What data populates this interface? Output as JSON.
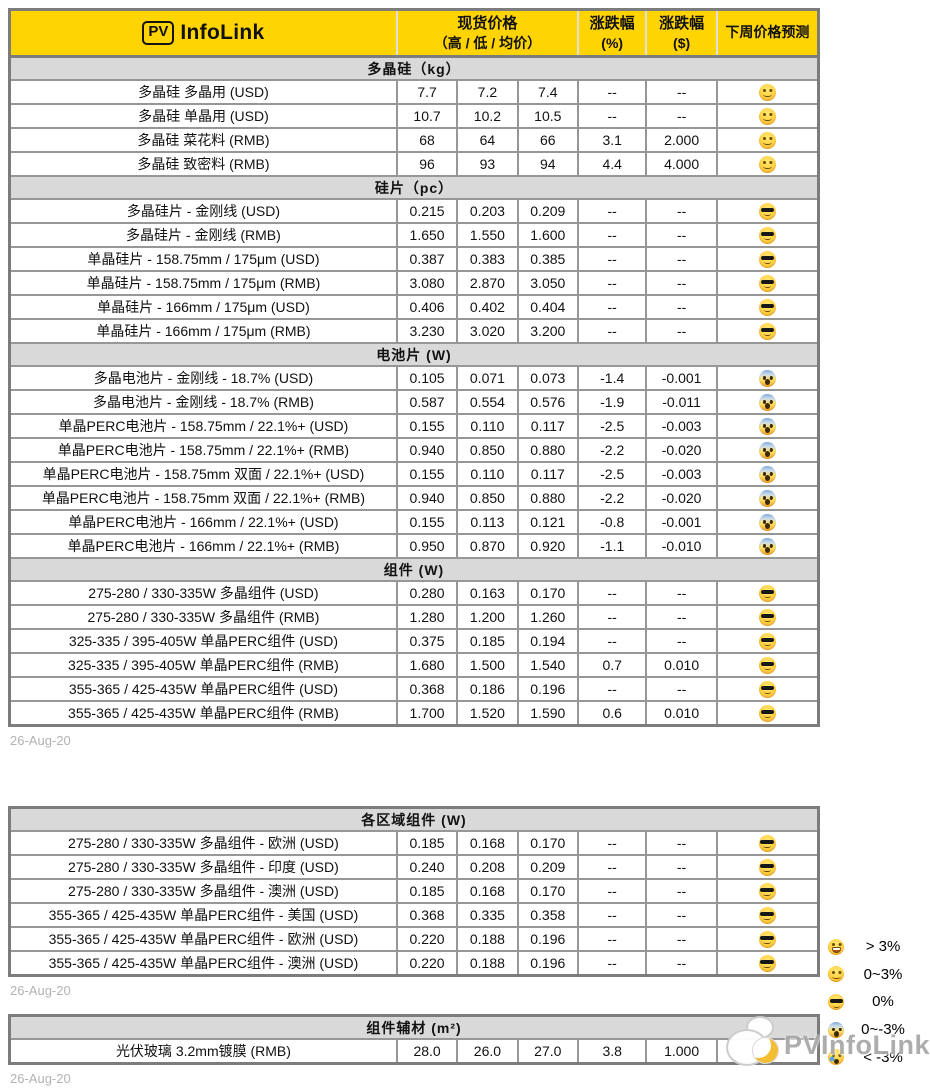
{
  "header": {
    "logo_pv": "PV",
    "logo_brand": "InfoLink",
    "spot_price_line1": "现货价格",
    "spot_price_line2": "（高 / 低 / 均价）",
    "change_pct_line1": "涨跌幅",
    "change_pct_line2": "(%)",
    "change_usd_line1": "涨跌幅",
    "change_usd_line2": "($)",
    "forecast": "下周价格预测"
  },
  "colors": {
    "accent": "#FFD400",
    "up": "#17A45F",
    "down": "#DC3A36",
    "section_bg": "#D9D9D9",
    "date_text": "#B2B2B2"
  },
  "blocks": [
    {
      "date": "26-Aug-20",
      "sections": [
        {
          "title": "多晶硅（kg）",
          "rows": [
            {
              "name": "多晶硅 多晶用 (USD)",
              "high": "7.7",
              "low": "7.2",
              "avg": "7.4",
              "pct": "--",
              "chg": "--",
              "emoji": "smile"
            },
            {
              "name": "多晶硅 单晶用 (USD)",
              "high": "10.7",
              "low": "10.2",
              "avg": "10.5",
              "pct": "--",
              "chg": "--",
              "emoji": "smile"
            },
            {
              "name": "多晶硅 菜花料 (RMB)",
              "high": "68",
              "low": "64",
              "avg": "66",
              "pct": "3.1",
              "chg": "2.000",
              "emoji": "smile"
            },
            {
              "name": "多晶硅 致密料 (RMB)",
              "high": "96",
              "low": "93",
              "avg": "94",
              "pct": "4.4",
              "chg": "4.000",
              "emoji": "smile"
            }
          ]
        },
        {
          "title": "硅片（pc）",
          "rows": [
            {
              "name": "多晶硅片 - 金刚线 (USD)",
              "high": "0.215",
              "low": "0.203",
              "avg": "0.209",
              "pct": "--",
              "chg": "--",
              "emoji": "cool"
            },
            {
              "name": "多晶硅片 - 金刚线 (RMB)",
              "high": "1.650",
              "low": "1.550",
              "avg": "1.600",
              "pct": "--",
              "chg": "--",
              "emoji": "cool"
            },
            {
              "name": "单晶硅片 - 158.75mm / 175μm (USD)",
              "high": "0.387",
              "low": "0.383",
              "avg": "0.385",
              "pct": "--",
              "chg": "--",
              "emoji": "cool"
            },
            {
              "name": "单晶硅片 - 158.75mm / 175μm (RMB)",
              "high": "3.080",
              "low": "2.870",
              "avg": "3.050",
              "pct": "--",
              "chg": "--",
              "emoji": "cool"
            },
            {
              "name": "单晶硅片 - 166mm / 175μm (USD)",
              "high": "0.406",
              "low": "0.402",
              "avg": "0.404",
              "pct": "--",
              "chg": "--",
              "emoji": "cool"
            },
            {
              "name": "单晶硅片 - 166mm / 175μm (RMB)",
              "high": "3.230",
              "low": "3.020",
              "avg": "3.200",
              "pct": "--",
              "chg": "--",
              "emoji": "cool"
            }
          ]
        },
        {
          "title": "电池片 (W)",
          "rows": [
            {
              "name": "多晶电池片 - 金刚线 - 18.7% (USD)",
              "high": "0.105",
              "low": "0.071",
              "avg": "0.073",
              "pct": "-1.4",
              "chg": "-0.001",
              "emoji": "scream"
            },
            {
              "name": "多晶电池片 - 金刚线 - 18.7% (RMB)",
              "high": "0.587",
              "low": "0.554",
              "avg": "0.576",
              "pct": "-1.9",
              "chg": "-0.011",
              "emoji": "scream"
            },
            {
              "name": "单晶PERC电池片 - 158.75mm / 22.1%+ (USD)",
              "high": "0.155",
              "low": "0.110",
              "avg": "0.117",
              "pct": "-2.5",
              "chg": "-0.003",
              "emoji": "scream"
            },
            {
              "name": "单晶PERC电池片 - 158.75mm / 22.1%+ (RMB)",
              "high": "0.940",
              "low": "0.850",
              "avg": "0.880",
              "pct": "-2.2",
              "chg": "-0.020",
              "emoji": "scream"
            },
            {
              "name": "单晶PERC电池片 - 158.75mm 双面 / 22.1%+ (USD)",
              "high": "0.155",
              "low": "0.110",
              "avg": "0.117",
              "pct": "-2.5",
              "chg": "-0.003",
              "emoji": "scream"
            },
            {
              "name": "单晶PERC电池片 - 158.75mm 双面 / 22.1%+ (RMB)",
              "high": "0.940",
              "low": "0.850",
              "avg": "0.880",
              "pct": "-2.2",
              "chg": "-0.020",
              "emoji": "scream"
            },
            {
              "name": "单晶PERC电池片 - 166mm / 22.1%+ (USD)",
              "high": "0.155",
              "low": "0.113",
              "avg": "0.121",
              "pct": "-0.8",
              "chg": "-0.001",
              "emoji": "scream"
            },
            {
              "name": "单晶PERC电池片 - 166mm / 22.1%+ (RMB)",
              "high": "0.950",
              "low": "0.870",
              "avg": "0.920",
              "pct": "-1.1",
              "chg": "-0.010",
              "emoji": "scream"
            }
          ]
        },
        {
          "title": "组件 (W)",
          "rows": [
            {
              "name": "275-280 / 330-335W 多晶组件 (USD)",
              "high": "0.280",
              "low": "0.163",
              "avg": "0.170",
              "pct": "--",
              "chg": "--",
              "emoji": "cool"
            },
            {
              "name": "275-280 / 330-335W 多晶组件 (RMB)",
              "high": "1.280",
              "low": "1.200",
              "avg": "1.260",
              "pct": "--",
              "chg": "--",
              "emoji": "cool"
            },
            {
              "name": "325-335 / 395-405W 单晶PERC组件 (USD)",
              "high": "0.375",
              "low": "0.185",
              "avg": "0.194",
              "pct": "--",
              "chg": "--",
              "emoji": "cool"
            },
            {
              "name": "325-335 / 395-405W 单晶PERC组件 (RMB)",
              "high": "1.680",
              "low": "1.500",
              "avg": "1.540",
              "pct": "0.7",
              "chg": "0.010",
              "emoji": "cool"
            },
            {
              "name": "355-365 / 425-435W 单晶PERC组件 (USD)",
              "high": "0.368",
              "low": "0.186",
              "avg": "0.196",
              "pct": "--",
              "chg": "--",
              "emoji": "cool"
            },
            {
              "name": "355-365 / 425-435W 单晶PERC组件 (RMB)",
              "high": "1.700",
              "low": "1.520",
              "avg": "1.590",
              "pct": "0.6",
              "chg": "0.010",
              "emoji": "cool"
            }
          ]
        }
      ]
    },
    {
      "date": "26-Aug-20",
      "sections": [
        {
          "title": "各区域组件 (W)",
          "rows": [
            {
              "name": "275-280 / 330-335W 多晶组件 - 欧洲 (USD)",
              "high": "0.185",
              "low": "0.168",
              "avg": "0.170",
              "pct": "--",
              "chg": "--",
              "emoji": "cool"
            },
            {
              "name": "275-280 / 330-335W 多晶组件 - 印度 (USD)",
              "high": "0.240",
              "low": "0.208",
              "avg": "0.209",
              "pct": "--",
              "chg": "--",
              "emoji": "cool"
            },
            {
              "name": "275-280 / 330-335W 多晶组件 - 澳洲 (USD)",
              "high": "0.185",
              "low": "0.168",
              "avg": "0.170",
              "pct": "--",
              "chg": "--",
              "emoji": "cool"
            },
            {
              "name": "355-365 / 425-435W 单晶PERC组件 - 美国 (USD)",
              "high": "0.368",
              "low": "0.335",
              "avg": "0.358",
              "pct": "--",
              "chg": "--",
              "emoji": "cool"
            },
            {
              "name": "355-365 / 425-435W 单晶PERC组件 - 欧洲 (USD)",
              "high": "0.220",
              "low": "0.188",
              "avg": "0.196",
              "pct": "--",
              "chg": "--",
              "emoji": "cool"
            },
            {
              "name": "355-365 / 425-435W 单晶PERC组件 - 澳洲 (USD)",
              "high": "0.220",
              "low": "0.188",
              "avg": "0.196",
              "pct": "--",
              "chg": "--",
              "emoji": "cool"
            }
          ]
        }
      ]
    },
    {
      "date": "26-Aug-20",
      "sections": [
        {
          "title": "组件辅材 (m²)",
          "rows": [
            {
              "name": "光伏玻璃 3.2mm镀膜 (RMB)",
              "high": "28.0",
              "low": "26.0",
              "avg": "27.0",
              "pct": "3.8",
              "chg": "1.000",
              "emoji": null
            }
          ]
        }
      ]
    }
  ],
  "legend": [
    {
      "emoji": "grin",
      "label": "> 3%"
    },
    {
      "emoji": "smile",
      "label": "0~3%"
    },
    {
      "emoji": "cool",
      "label": "0%"
    },
    {
      "emoji": "scream",
      "label": "0~-3%"
    },
    {
      "emoji": "cry",
      "label": "< -3%"
    }
  ],
  "watermark": {
    "text": "PVInfoLink"
  }
}
